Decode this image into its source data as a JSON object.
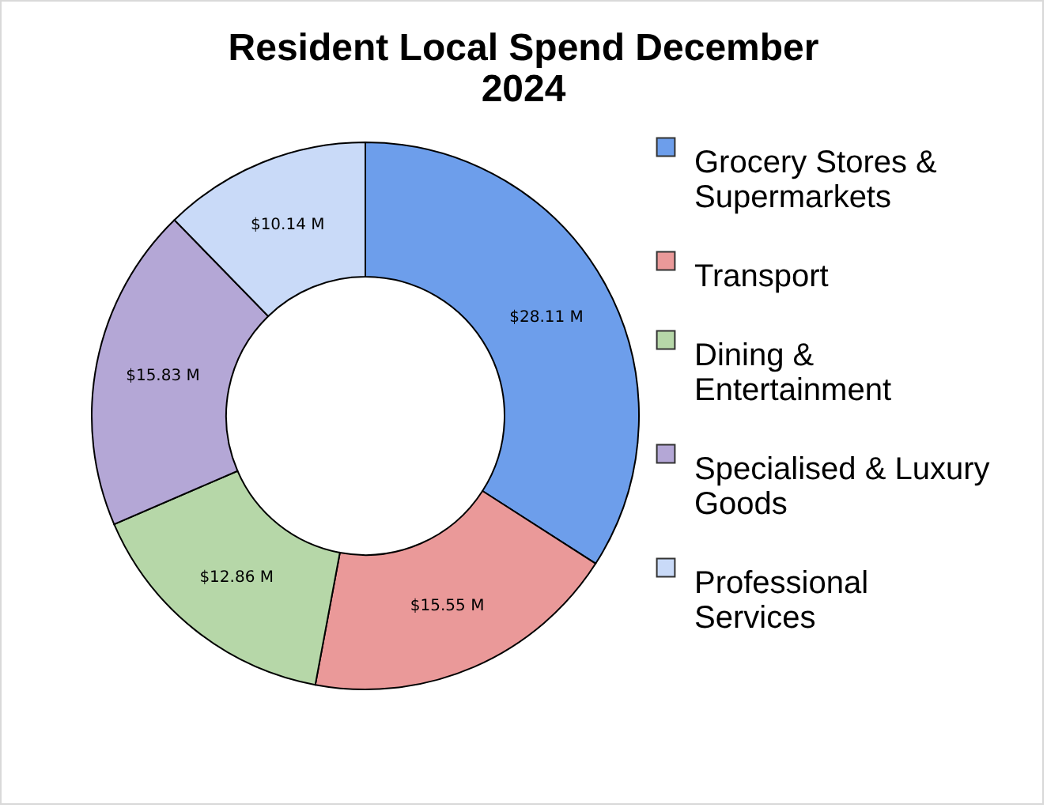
{
  "chart_data": {
    "type": "donut",
    "title": "Resident Local Spend December 2024",
    "categories": [
      "Grocery Stores & Supermarkets",
      "Transport",
      "Dining & Entertainment",
      "Specialised & Luxury Goods",
      "Professional Services"
    ],
    "values": [
      28.11,
      15.55,
      12.86,
      15.83,
      10.14
    ],
    "value_labels": [
      "$28.11 M",
      "$15.55 M",
      "$12.86 M",
      "$15.83 M",
      "$10.14 M"
    ],
    "colors": [
      "#6d9eeb",
      "#ea9999",
      "#b6d7a8",
      "#b4a7d6",
      "#c9daf8"
    ],
    "legend": "right"
  }
}
